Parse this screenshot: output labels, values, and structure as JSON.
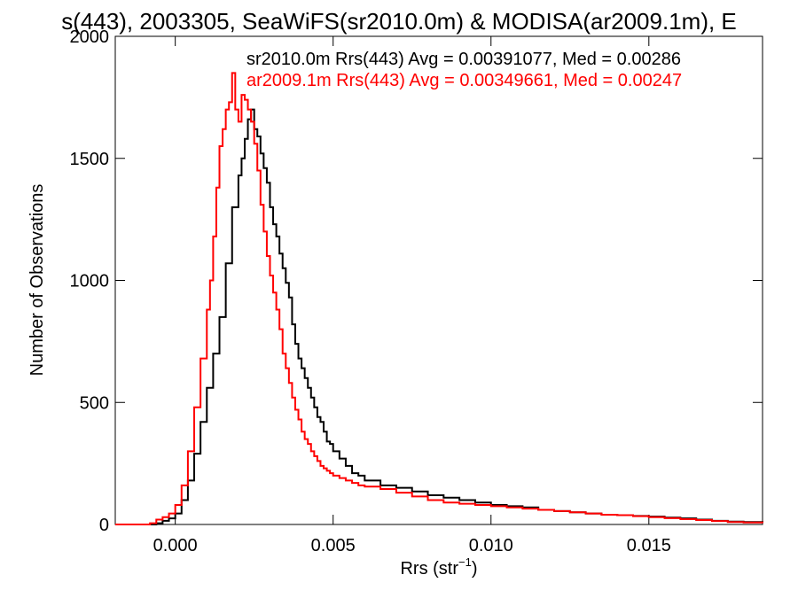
{
  "chart_data": {
    "type": "line",
    "title": "s(443), 2003305, SeaWiFS(sr2010.0m) & MODISA(ar2009.1m), E",
    "xlabel": "Rrs (str",
    "xlabel_sup": "−1",
    "xlabel_close": ")",
    "ylabel": "Number of Observations",
    "xlim": [
      -0.0019,
      0.0186
    ],
    "ylim": [
      0,
      2000
    ],
    "xticks": [
      0.0,
      0.005,
      0.01,
      0.015
    ],
    "xtick_labels": [
      "0.000",
      "0.005",
      "0.010",
      "0.015"
    ],
    "yticks": [
      0,
      500,
      1000,
      1500,
      2000
    ],
    "ytick_labels": [
      "0",
      "500",
      "1000",
      "1500",
      "2000"
    ],
    "grid": false,
    "legend_position": "top-right",
    "step": true,
    "series": [
      {
        "name": "sr2010.0m",
        "color": "#000000",
        "legend_text": "sr2010.0m Rrs(443) Avg = 0.00391077, Med = 0.00286",
        "points": [
          [
            -0.0019,
            0
          ],
          [
            -0.0008,
            0
          ],
          [
            -0.0006,
            5
          ],
          [
            -0.0004,
            15
          ],
          [
            -0.0002,
            25
          ],
          [
            0.0,
            45
          ],
          [
            0.0002,
            100
          ],
          [
            0.0004,
            180
          ],
          [
            0.0006,
            290
          ],
          [
            0.0008,
            420
          ],
          [
            0.001,
            560
          ],
          [
            0.0012,
            700
          ],
          [
            0.0014,
            850
          ],
          [
            0.0016,
            1070
          ],
          [
            0.0018,
            1300
          ],
          [
            0.002,
            1430
          ],
          [
            0.0021,
            1500
          ],
          [
            0.0022,
            1580
          ],
          [
            0.0023,
            1660
          ],
          [
            0.0024,
            1700
          ],
          [
            0.0025,
            1620
          ],
          [
            0.0026,
            1590
          ],
          [
            0.0027,
            1520
          ],
          [
            0.0028,
            1460
          ],
          [
            0.0029,
            1400
          ],
          [
            0.003,
            1300
          ],
          [
            0.0031,
            1230
          ],
          [
            0.0032,
            1180
          ],
          [
            0.0033,
            1110
          ],
          [
            0.0034,
            1050
          ],
          [
            0.0035,
            990
          ],
          [
            0.0036,
            930
          ],
          [
            0.0037,
            820
          ],
          [
            0.0038,
            740
          ],
          [
            0.0039,
            680
          ],
          [
            0.004,
            640
          ],
          [
            0.0041,
            600
          ],
          [
            0.0042,
            560
          ],
          [
            0.0043,
            520
          ],
          [
            0.0044,
            480
          ],
          [
            0.0045,
            440
          ],
          [
            0.0046,
            420
          ],
          [
            0.0047,
            380
          ],
          [
            0.0048,
            340
          ],
          [
            0.0049,
            330
          ],
          [
            0.005,
            300
          ],
          [
            0.0052,
            270
          ],
          [
            0.0054,
            240
          ],
          [
            0.0056,
            210
          ],
          [
            0.0058,
            200
          ],
          [
            0.006,
            180
          ],
          [
            0.0065,
            160
          ],
          [
            0.007,
            150
          ],
          [
            0.0075,
            135
          ],
          [
            0.008,
            120
          ],
          [
            0.0085,
            110
          ],
          [
            0.009,
            100
          ],
          [
            0.0095,
            90
          ],
          [
            0.01,
            80
          ],
          [
            0.0105,
            75
          ],
          [
            0.011,
            70
          ],
          [
            0.0115,
            60
          ],
          [
            0.012,
            55
          ],
          [
            0.0125,
            50
          ],
          [
            0.013,
            45
          ],
          [
            0.0135,
            40
          ],
          [
            0.014,
            38
          ],
          [
            0.0145,
            35
          ],
          [
            0.015,
            32
          ],
          [
            0.0155,
            28
          ],
          [
            0.016,
            25
          ],
          [
            0.0165,
            20
          ],
          [
            0.017,
            15
          ],
          [
            0.0175,
            12
          ],
          [
            0.018,
            10
          ],
          [
            0.0186,
            8
          ]
        ]
      },
      {
        "name": "ar2009.1m",
        "color": "#ff0000",
        "legend_text": "ar2009.1m Rrs(443) Avg = 0.00349661, Med = 0.00247",
        "points": [
          [
            -0.0019,
            0
          ],
          [
            -0.0009,
            0
          ],
          [
            -0.0008,
            5
          ],
          [
            -0.0006,
            20
          ],
          [
            -0.0004,
            30
          ],
          [
            -0.0002,
            45
          ],
          [
            0.0,
            80
          ],
          [
            0.0002,
            160
          ],
          [
            0.0004,
            300
          ],
          [
            0.0006,
            480
          ],
          [
            0.0008,
            680
          ],
          [
            0.001,
            880
          ],
          [
            0.0011,
            1000
          ],
          [
            0.0012,
            1180
          ],
          [
            0.0013,
            1380
          ],
          [
            0.0014,
            1550
          ],
          [
            0.0015,
            1620
          ],
          [
            0.0016,
            1700
          ],
          [
            0.0017,
            1730
          ],
          [
            0.0018,
            1850
          ],
          [
            0.0019,
            1700
          ],
          [
            0.002,
            1650
          ],
          [
            0.0021,
            1760
          ],
          [
            0.0022,
            1740
          ],
          [
            0.0023,
            1700
          ],
          [
            0.0024,
            1650
          ],
          [
            0.0025,
            1560
          ],
          [
            0.0026,
            1450
          ],
          [
            0.0027,
            1310
          ],
          [
            0.0028,
            1200
          ],
          [
            0.0029,
            1100
          ],
          [
            0.003,
            1020
          ],
          [
            0.0031,
            950
          ],
          [
            0.0032,
            880
          ],
          [
            0.0033,
            800
          ],
          [
            0.0034,
            700
          ],
          [
            0.0035,
            640
          ],
          [
            0.0036,
            580
          ],
          [
            0.0037,
            520
          ],
          [
            0.0038,
            470
          ],
          [
            0.0039,
            430
          ],
          [
            0.004,
            380
          ],
          [
            0.0041,
            350
          ],
          [
            0.0042,
            330
          ],
          [
            0.0043,
            300
          ],
          [
            0.0044,
            280
          ],
          [
            0.0045,
            260
          ],
          [
            0.0046,
            240
          ],
          [
            0.0047,
            230
          ],
          [
            0.0048,
            220
          ],
          [
            0.0049,
            210
          ],
          [
            0.005,
            200
          ],
          [
            0.0052,
            190
          ],
          [
            0.0054,
            180
          ],
          [
            0.0056,
            170
          ],
          [
            0.0058,
            160
          ],
          [
            0.006,
            155
          ],
          [
            0.0065,
            145
          ],
          [
            0.007,
            130
          ],
          [
            0.0075,
            115
          ],
          [
            0.008,
            100
          ],
          [
            0.0085,
            90
          ],
          [
            0.009,
            85
          ],
          [
            0.0095,
            80
          ],
          [
            0.01,
            75
          ],
          [
            0.0105,
            70
          ],
          [
            0.011,
            65
          ],
          [
            0.0115,
            60
          ],
          [
            0.012,
            55
          ],
          [
            0.0125,
            50
          ],
          [
            0.013,
            45
          ],
          [
            0.0135,
            40
          ],
          [
            0.014,
            38
          ],
          [
            0.0145,
            34
          ],
          [
            0.015,
            30
          ],
          [
            0.0155,
            26
          ],
          [
            0.016,
            22
          ],
          [
            0.0165,
            18
          ],
          [
            0.017,
            14
          ],
          [
            0.0175,
            10
          ],
          [
            0.018,
            8
          ],
          [
            0.0186,
            6
          ]
        ]
      }
    ]
  }
}
